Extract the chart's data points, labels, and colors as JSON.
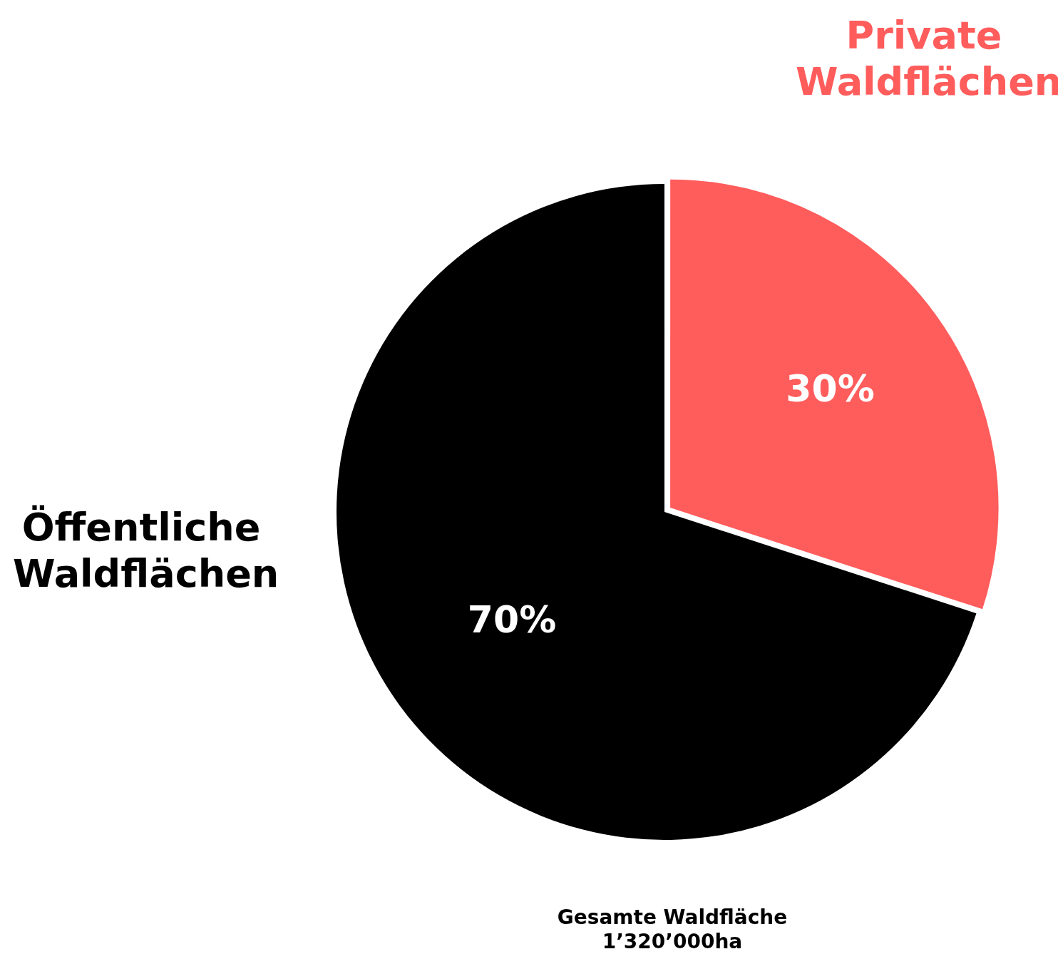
{
  "chart_data": {
    "type": "pie",
    "categories": [
      "Private Waldflächen",
      "Öffentliche Waldflächen"
    ],
    "values": [
      30,
      70
    ],
    "colors": [
      "#ff5c5c",
      "#000000"
    ],
    "value_labels": [
      "30%",
      "70%"
    ],
    "legend": false,
    "annotations": [
      "Gesamte Waldfläche\n1’320’000ha"
    ]
  }
}
